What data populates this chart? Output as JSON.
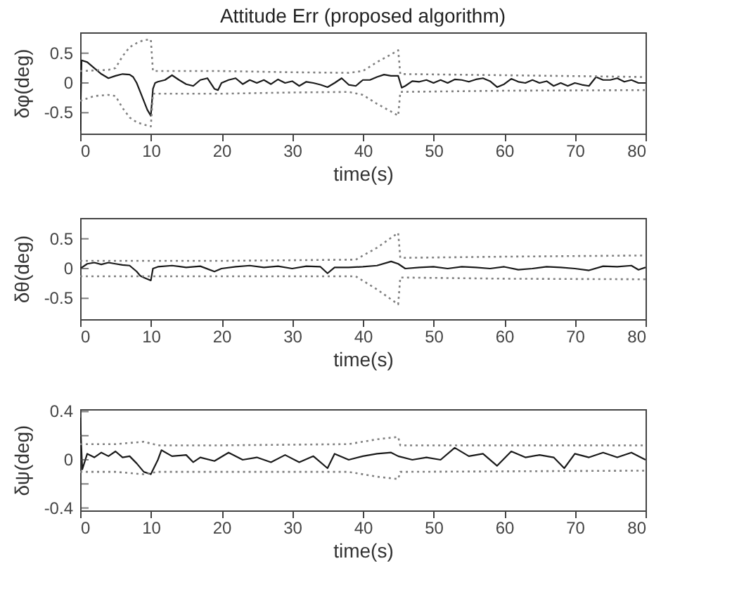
{
  "chart_data": [
    {
      "type": "line",
      "title": "Attitude Err (proposed algorithm)",
      "xlabel": "time(s)",
      "ylabel": "δφ(deg)",
      "xlim": [
        0,
        80
      ],
      "xticks": [
        0,
        10,
        20,
        30,
        40,
        50,
        60,
        70,
        80
      ],
      "ylim": [
        -0.85,
        0.85
      ],
      "yticks": [
        -0.5,
        0,
        0.5
      ],
      "grid": false,
      "series": [
        {
          "color": "#1a1a1a",
          "line_style": "solid",
          "x": [
            0,
            0.2,
            1,
            1.5,
            2,
            3,
            4,
            5,
            6,
            7,
            7.5,
            8,
            8.5,
            9,
            9.5,
            10,
            10.3,
            10.6,
            11,
            12,
            13,
            14,
            15,
            16,
            17,
            18,
            19,
            19.5,
            20,
            21,
            22,
            23,
            24,
            25,
            26,
            27,
            28,
            29,
            30,
            31,
            32,
            33,
            34,
            35,
            36,
            37,
            38,
            39,
            40,
            41,
            42,
            43,
            44,
            45,
            45.5,
            46,
            47,
            48,
            49,
            50,
            51,
            52,
            53,
            54,
            55,
            56,
            57,
            58,
            59,
            60,
            61,
            62,
            63,
            64,
            65,
            66,
            67,
            68,
            69,
            70,
            71,
            72,
            73,
            74,
            75,
            76,
            77,
            78,
            79,
            80
          ],
          "values": [
            -0.8,
            0.38,
            0.35,
            0.3,
            0.25,
            0.15,
            0.08,
            0.12,
            0.15,
            0.14,
            0.1,
            0,
            -0.15,
            -0.3,
            -0.45,
            -0.55,
            -0.1,
            0,
            0.02,
            0.05,
            0.13,
            0.05,
            -0.02,
            -0.05,
            0.05,
            0.08,
            -0.1,
            -0.12,
            0,
            0.05,
            0.08,
            -0.02,
            0.05,
            0,
            0.05,
            -0.02,
            0.06,
            0,
            0.03,
            -0.05,
            0.02,
            0,
            -0.03,
            -0.07,
            0,
            0.08,
            -0.03,
            -0.05,
            0.05,
            0.05,
            0.1,
            0.14,
            0.12,
            0.12,
            -0.08,
            -0.05,
            0.03,
            0.02,
            0.05,
            0,
            0.05,
            0,
            0.06,
            0.05,
            0.02,
            0.06,
            0.08,
            0.03,
            -0.07,
            -0.02,
            0.07,
            0.02,
            0,
            0.05,
            0,
            0.03,
            -0.05,
            0,
            -0.05,
            0,
            -0.03,
            -0.05,
            0.1,
            0.05,
            0.05,
            0.08,
            0.02,
            0.05,
            0,
            0
          ]
        },
        {
          "color": "#808080",
          "line_style": "dotted",
          "x": [
            0,
            4,
            5,
            6,
            7,
            8,
            9,
            10,
            10.3,
            20,
            30,
            38,
            40,
            42,
            44,
            45,
            45.3,
            60,
            80
          ],
          "values": [
            0.2,
            0.22,
            0.25,
            0.45,
            0.6,
            0.67,
            0.72,
            0.73,
            0.2,
            0.2,
            0.18,
            0.17,
            0.2,
            0.35,
            0.48,
            0.55,
            0.15,
            0.13,
            0.1
          ]
        },
        {
          "color": "#808080",
          "line_style": "dotted",
          "x": [
            0,
            2,
            4,
            5,
            6,
            7,
            8,
            9,
            10,
            10.3,
            20,
            30,
            38,
            40,
            42,
            44,
            45,
            45.3,
            60,
            80
          ],
          "values": [
            -0.3,
            -0.22,
            -0.2,
            -0.22,
            -0.42,
            -0.58,
            -0.66,
            -0.7,
            -0.73,
            -0.18,
            -0.18,
            -0.16,
            -0.15,
            -0.2,
            -0.35,
            -0.48,
            -0.55,
            -0.15,
            -0.13,
            -0.12
          ]
        }
      ]
    },
    {
      "type": "line",
      "xlabel": "time(s)",
      "ylabel": "δθ(deg)",
      "xlim": [
        0,
        80
      ],
      "xticks": [
        0,
        10,
        20,
        30,
        40,
        50,
        60,
        70,
        80
      ],
      "ylim": [
        -0.85,
        0.85
      ],
      "yticks": [
        -0.5,
        0,
        0.5
      ],
      "grid": false,
      "series": [
        {
          "color": "#1a1a1a",
          "line_style": "solid",
          "x": [
            0,
            1,
            2,
            3,
            4,
            5,
            6,
            7,
            8,
            8.5,
            9,
            10,
            10.3,
            11,
            13,
            15,
            17,
            19,
            20,
            22,
            24,
            26,
            28,
            30,
            32,
            34,
            35,
            36,
            38,
            40,
            42,
            44,
            45,
            46,
            48,
            50,
            52,
            54,
            56,
            58,
            60,
            62,
            64,
            66,
            68,
            70,
            72,
            74,
            76,
            78,
            79,
            80
          ],
          "values": [
            0,
            0.08,
            0.1,
            0.07,
            0.1,
            0.08,
            0.06,
            0.05,
            -0.05,
            -0.12,
            -0.15,
            -0.2,
            0,
            0.03,
            0.05,
            0.02,
            0.04,
            -0.05,
            0,
            0.03,
            0.05,
            0.02,
            0.04,
            0,
            0.04,
            0.03,
            -0.08,
            0.02,
            0.02,
            0.03,
            0.05,
            0.12,
            0.08,
            0,
            0.02,
            0.03,
            0,
            0.03,
            0.02,
            0,
            0.03,
            -0.02,
            0,
            0.03,
            0.02,
            0,
            -0.03,
            0.04,
            0.03,
            0.05,
            -0.02,
            0.02
          ]
        },
        {
          "color": "#808080",
          "line_style": "dotted",
          "x": [
            0,
            10,
            20,
            30,
            39,
            42,
            45,
            45.3,
            60,
            80
          ],
          "values": [
            0.13,
            0.13,
            0.13,
            0.14,
            0.15,
            0.35,
            0.6,
            0.18,
            0.2,
            0.22
          ]
        },
        {
          "color": "#808080",
          "line_style": "dotted",
          "x": [
            0,
            39,
            42,
            45,
            45.3,
            60,
            80
          ],
          "values": [
            -0.13,
            -0.13,
            -0.35,
            -0.6,
            -0.15,
            -0.17,
            -0.18
          ]
        }
      ]
    },
    {
      "type": "line",
      "xlabel": "time(s)",
      "ylabel": "δψ(deg)",
      "xlim": [
        0,
        80
      ],
      "xticks": [
        0,
        10,
        20,
        30,
        40,
        50,
        60,
        70,
        80
      ],
      "ylim": [
        -0.42,
        0.42
      ],
      "yticks": [
        -0.4,
        {
          "value": -0.2,
          "label": null
        },
        0,
        {
          "value": 0.2,
          "label": null
        },
        0.4
      ],
      "grid": false,
      "series": [
        {
          "color": "#1a1a1a",
          "line_style": "solid",
          "x": [
            0,
            0.3,
            1,
            2,
            3,
            4,
            5,
            6,
            7,
            8,
            9,
            10,
            11,
            11.5,
            13,
            15,
            16,
            17,
            19,
            21,
            23,
            25,
            27,
            29,
            31,
            33,
            35,
            36,
            38,
            40,
            42,
            44,
            45,
            47,
            49,
            51,
            53,
            55,
            57,
            59,
            61,
            63,
            65,
            67,
            68.5,
            70,
            72,
            74,
            76,
            78,
            80
          ],
          "values": [
            0.35,
            -0.08,
            0.05,
            0.02,
            0.06,
            0.03,
            0.07,
            0.02,
            0.03,
            -0.03,
            -0.1,
            -0.12,
            0,
            0.08,
            0.03,
            0.04,
            -0.02,
            0.02,
            -0.01,
            0.06,
            0,
            0.02,
            -0.02,
            0.04,
            -0.02,
            0.03,
            -0.07,
            0.05,
            0,
            0.03,
            0.05,
            0.06,
            0.03,
            0,
            0.02,
            0,
            0.1,
            0.03,
            0.05,
            -0.05,
            0.07,
            0.02,
            0.04,
            0.02,
            -0.07,
            0.05,
            0.02,
            0.06,
            0.02,
            0.06,
            0
          ]
        },
        {
          "color": "#808080",
          "line_style": "dotted",
          "x": [
            0,
            5,
            9,
            11,
            20,
            38,
            42,
            45,
            45.3,
            80
          ],
          "values": [
            0.13,
            0.13,
            0.15,
            0.12,
            0.12,
            0.13,
            0.17,
            0.19,
            0.12,
            0.12
          ]
        },
        {
          "color": "#808080",
          "line_style": "dotted",
          "x": [
            0,
            5,
            9,
            11,
            38,
            42,
            45,
            45.3,
            80
          ],
          "values": [
            -0.1,
            -0.1,
            -0.12,
            -0.1,
            -0.1,
            -0.14,
            -0.16,
            -0.1,
            -0.09
          ]
        }
      ]
    }
  ]
}
